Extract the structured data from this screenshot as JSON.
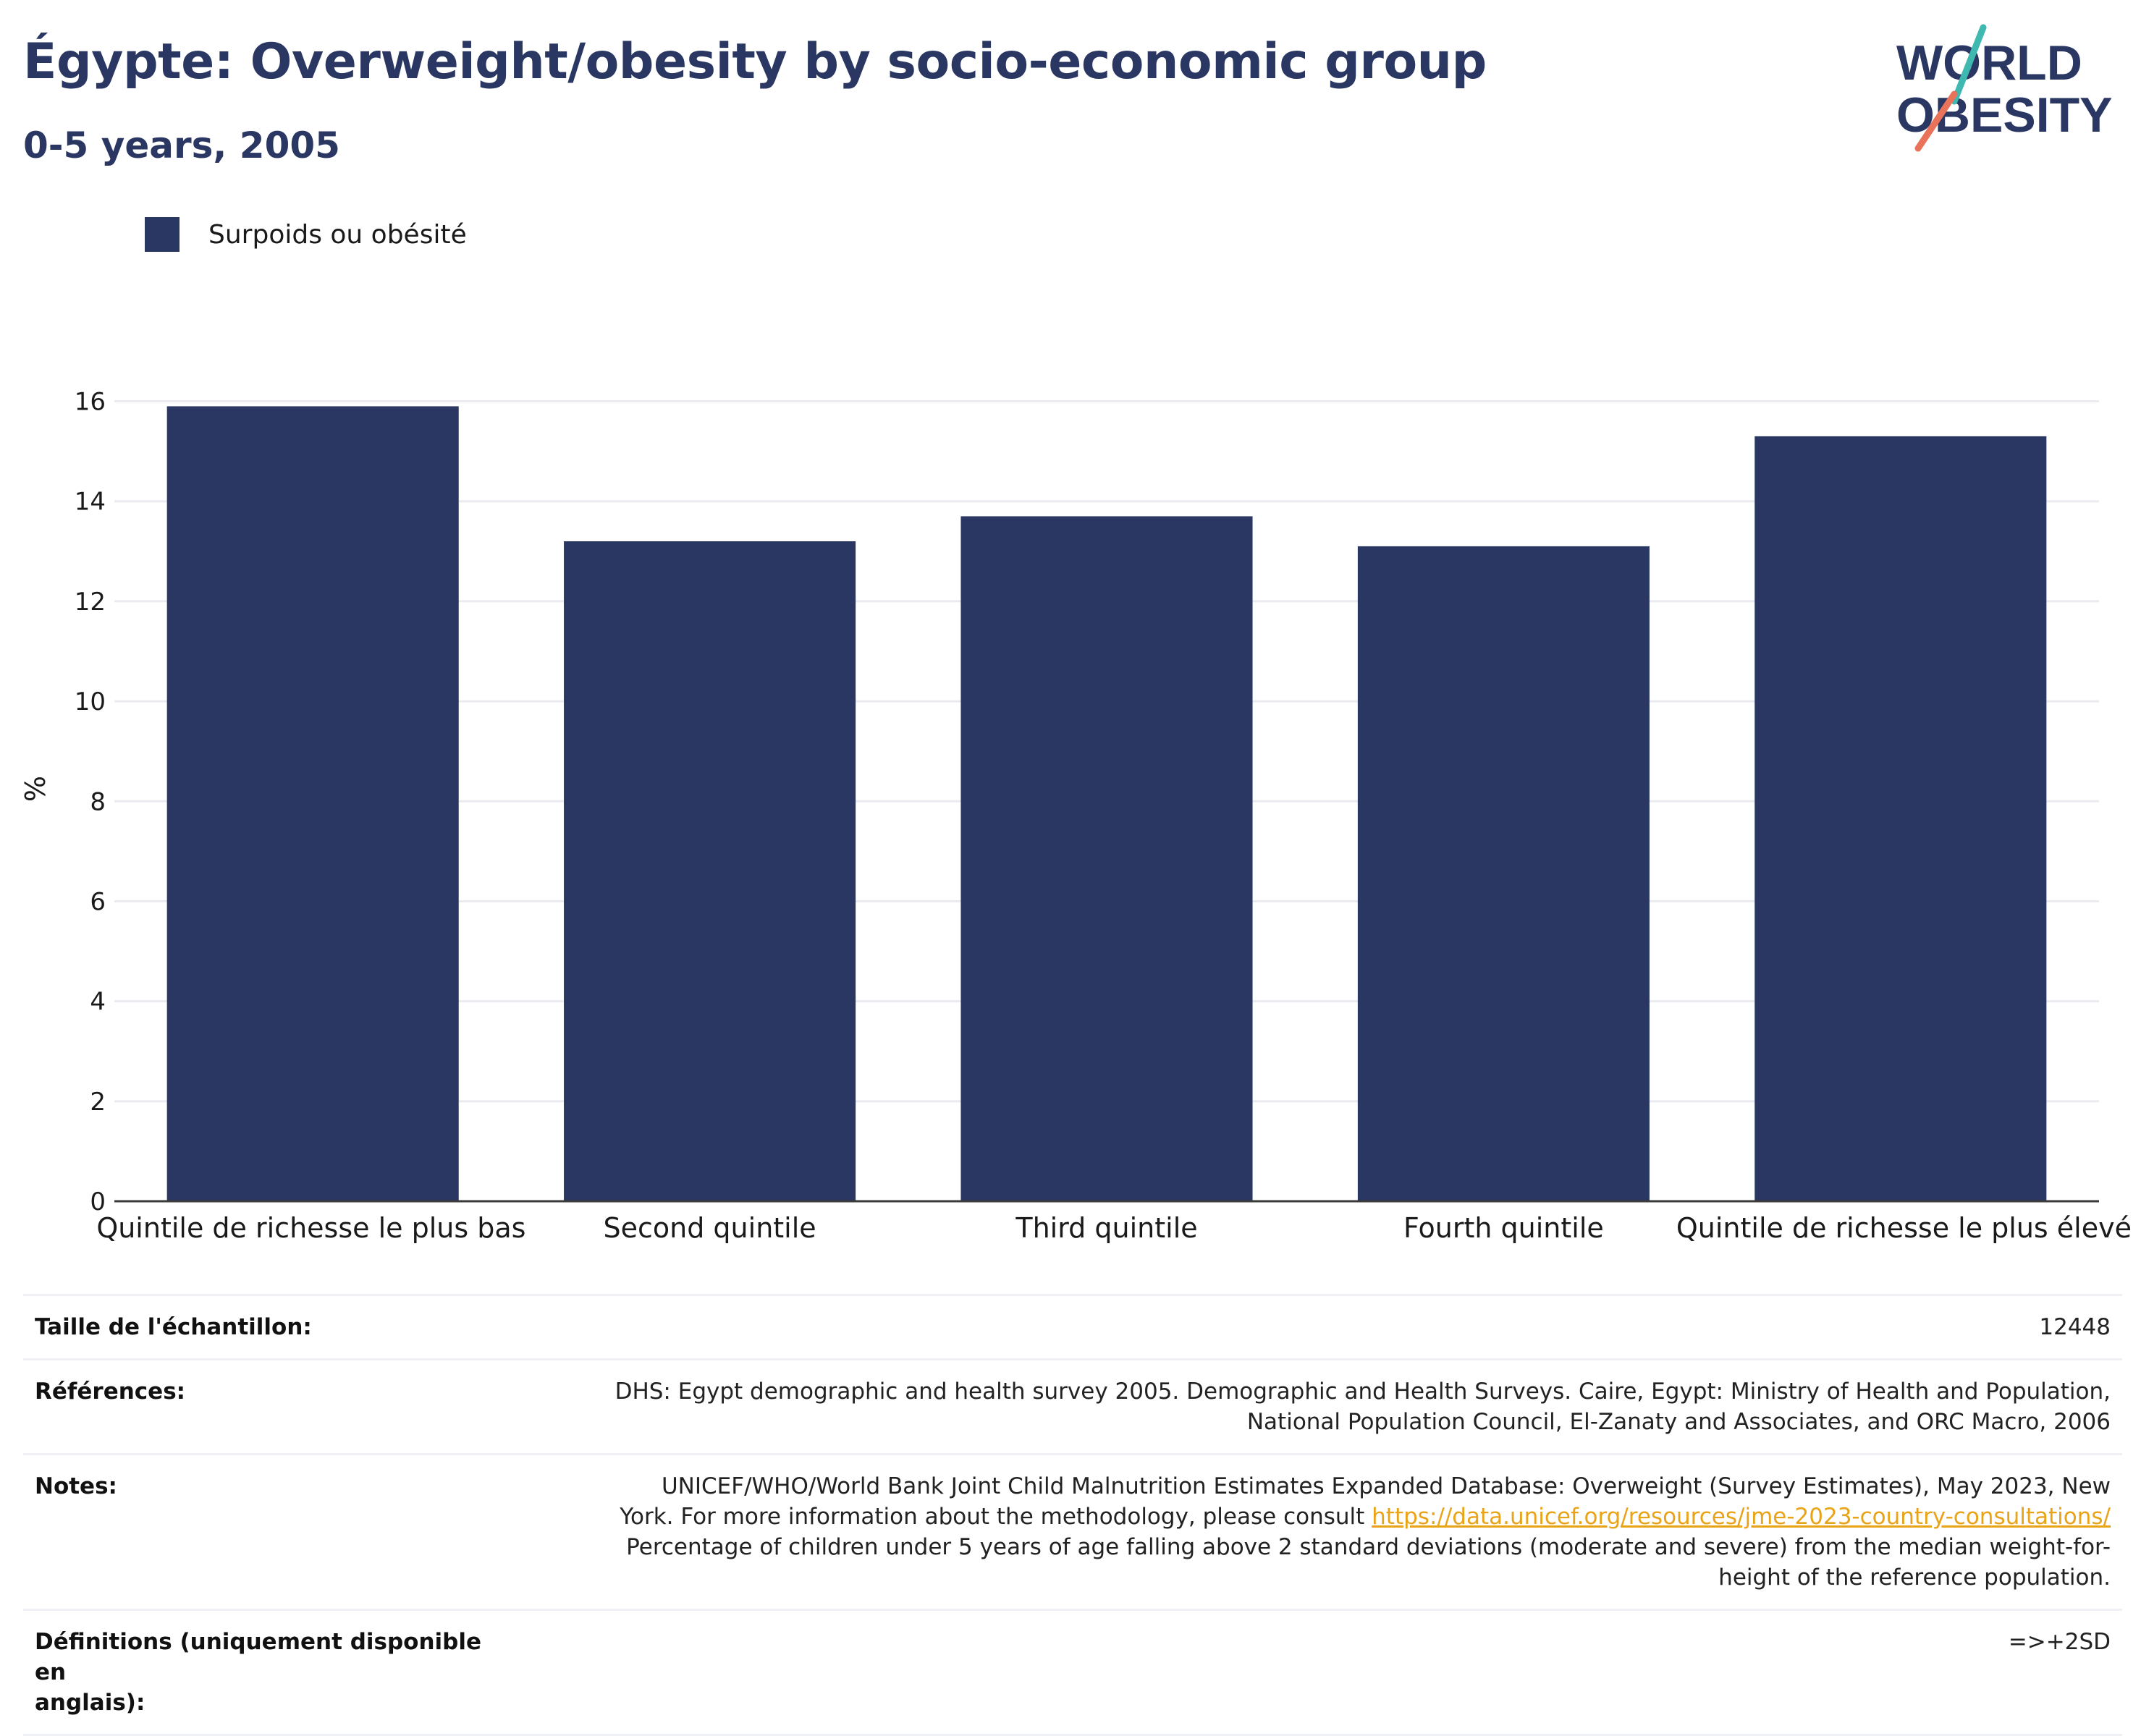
{
  "title": "Égypte: Overweight/obesity by socio-economic group",
  "subtitle": "0-5 years, 2005",
  "logo": {
    "line1": "WORLD",
    "line2": "OBESITY"
  },
  "colors": {
    "bar": "#2a3762",
    "accent_teal": "#3fb8af",
    "accent_coral": "#e8735a",
    "link": "#e8a317"
  },
  "legend": {
    "placement": "top-left",
    "items": [
      {
        "label": "Surpoids ou obésité",
        "color": "#2a3762"
      }
    ]
  },
  "chart_data": {
    "type": "bar",
    "categories": [
      "Quintile de richesse le plus bas",
      "Second quintile",
      "Third quintile",
      "Fourth quintile",
      "Quintile de richesse le plus élevé"
    ],
    "series": [
      {
        "name": "Surpoids ou obésité",
        "values": [
          15.9,
          13.2,
          13.7,
          13.1,
          15.3
        ]
      }
    ],
    "ylabel": "%",
    "xlabel": "",
    "ylim": [
      0,
      16.5
    ],
    "yticks": [
      0,
      2,
      4,
      6,
      8,
      10,
      12,
      14,
      16
    ],
    "grid": true
  },
  "info": {
    "sample_size": {
      "label": "Taille de l'échantillon:",
      "value": "12448"
    },
    "references": {
      "label": "Références:",
      "line1": "DHS: Egypt demographic and health survey 2005. Demographic and Health Surveys. Caire, Egypt: Ministry of Health and Population,",
      "line2": "National Population Council, El-Zanaty and Associates, and ORC Macro, 2006"
    },
    "notes": {
      "label": "Notes:",
      "line1": "UNICEF/WHO/World Bank Joint Child Malnutrition Estimates Expanded Database: Overweight (Survey Estimates), May 2023, New",
      "line2_prefix": "York. For more information about the methodology, please consult ",
      "link": "https://data.unicef.org/resources/jme-2023-country-consultations/",
      "line3": "Percentage of children under 5 years of age falling above 2 standard deviations (moderate and severe) from the median weight-for-",
      "line4": "height of the reference population."
    },
    "definitions": {
      "label_line1": "Définitions (uniquement disponible en",
      "label_line2": "anglais):",
      "value": "=>+2SD"
    }
  }
}
